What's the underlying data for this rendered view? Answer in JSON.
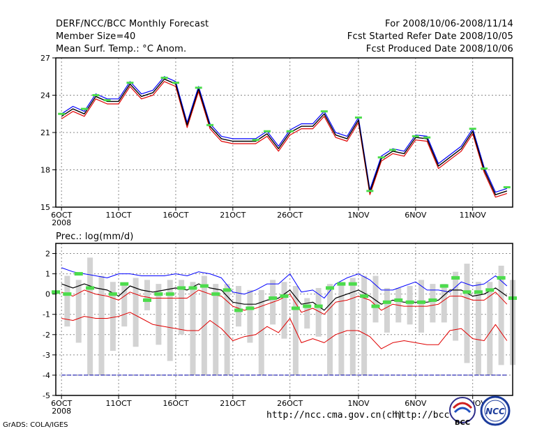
{
  "header": {
    "title": "DERF/NCC/BCC Monthly Forecast",
    "member_size": "Member Size=40",
    "variable": "Mean Surf. Temp.: °C Anom.",
    "period": "For 2008/10/06-2008/11/14",
    "fcst_started": "Fcst Started Refer Date 2008/10/05",
    "fcst_produced": "Fcst Produced Date 2008/10/06"
  },
  "footer": {
    "credit": "GrADS: COLA/IGES",
    "url1": "http://ncc.cma.gov.cn(ch)",
    "url2": "http://bcc."
  },
  "logos": {
    "bcc": "BCC",
    "ncc": "NCC"
  },
  "colors": {
    "axis": "#000000",
    "grid": "#8a8a8a",
    "upper_line": "#0000ff",
    "lower_line": "#e00000",
    "ensemble_mean": "#000000",
    "observation_mark": "#4cdc4c",
    "spread_bar": "#d3d3d3"
  },
  "chart_data": [
    {
      "type": "line",
      "title": "Mean Surf. Temp.: °C Anom.",
      "x_tick_labels": [
        "6OCT",
        "11OCT",
        "16OCT",
        "21OCT",
        "26OCT",
        "1NOV",
        "6NOV",
        "11NOV"
      ],
      "x_tick_days": [
        0,
        5,
        10,
        15,
        20,
        26,
        31,
        36
      ],
      "x_year_label": "2008",
      "x_range_days": [
        -0.5,
        39.5
      ],
      "ylim": [
        15,
        27
      ],
      "y_ticks": [
        15,
        18,
        21,
        24,
        27
      ],
      "series": [
        {
          "name": "mean",
          "values": [
            22.3,
            22.9,
            22.5,
            23.9,
            23.5,
            23.5,
            24.9,
            23.9,
            24.2,
            25.3,
            24.9,
            21.6,
            24.5,
            21.5,
            20.5,
            20.3,
            20.3,
            20.3,
            20.9,
            19.7,
            21.0,
            21.5,
            21.5,
            22.5,
            20.8,
            20.5,
            22.0,
            16.2,
            18.9,
            19.5,
            19.3,
            20.6,
            20.5,
            18.3,
            19.0,
            19.7,
            21.1,
            18.0,
            16.0,
            16.3
          ]
        },
        {
          "name": "upper",
          "values": [
            22.5,
            23.1,
            22.7,
            24.1,
            23.7,
            23.7,
            25.1,
            24.1,
            24.4,
            25.5,
            25.1,
            21.8,
            24.7,
            21.7,
            20.7,
            20.5,
            20.5,
            20.5,
            21.1,
            19.9,
            21.2,
            21.7,
            21.7,
            22.7,
            21.0,
            20.7,
            22.2,
            16.4,
            19.1,
            19.7,
            19.5,
            20.8,
            20.7,
            18.5,
            19.2,
            19.9,
            21.3,
            18.2,
            16.2,
            16.5
          ]
        },
        {
          "name": "lower",
          "values": [
            22.1,
            22.7,
            22.3,
            23.7,
            23.3,
            23.3,
            24.7,
            23.7,
            24.0,
            25.1,
            24.7,
            21.4,
            24.3,
            21.3,
            20.3,
            20.1,
            20.1,
            20.1,
            20.7,
            19.5,
            20.8,
            21.3,
            21.3,
            22.3,
            20.6,
            20.3,
            21.8,
            16.0,
            18.7,
            19.3,
            19.1,
            20.4,
            20.3,
            18.1,
            18.8,
            19.5,
            20.9,
            17.8,
            15.8,
            16.1
          ]
        },
        {
          "name": "observation",
          "marks": [
            [
              0,
              22.5
            ],
            [
              2,
              22.9
            ],
            [
              3,
              24.0
            ],
            [
              4,
              23.6
            ],
            [
              6,
              25.0
            ],
            [
              9,
              25.4
            ],
            [
              10,
              25.0
            ],
            [
              12,
              24.6
            ],
            [
              13,
              21.6
            ],
            [
              17,
              20.4
            ],
            [
              18,
              21.1
            ],
            [
              20,
              21.1
            ],
            [
              23,
              22.7
            ],
            [
              26,
              22.2
            ],
            [
              27,
              16.3
            ],
            [
              28,
              19.0
            ],
            [
              29,
              19.6
            ],
            [
              31,
              20.7
            ],
            [
              32,
              20.6
            ],
            [
              36,
              21.3
            ],
            [
              37,
              18.1
            ],
            [
              39,
              16.6
            ]
          ]
        }
      ]
    },
    {
      "type": "line",
      "title": "Prec.: log(mm/d)",
      "x_tick_labels": [
        "6OCT",
        "11OCT",
        "16OCT",
        "21OCT",
        "26OCT",
        "1NOV",
        "6NOV",
        "11NOV"
      ],
      "x_tick_days": [
        0,
        5,
        10,
        15,
        20,
        26,
        31,
        36
      ],
      "x_year_label": "2008",
      "x_range_days": [
        -0.5,
        39.5
      ],
      "ylim": [
        -5,
        2.5
      ],
      "y_ticks": [
        -5,
        -4,
        -3,
        -2,
        -1,
        0,
        1,
        2
      ],
      "baseline": -4,
      "series": [
        {
          "name": "max",
          "values": [
            1.3,
            1.1,
            1.0,
            0.9,
            0.8,
            1.0,
            1.0,
            0.9,
            0.9,
            0.9,
            1.0,
            0.9,
            1.1,
            1.0,
            0.8,
            0.1,
            0.0,
            0.2,
            0.5,
            0.5,
            1.0,
            0.1,
            0.2,
            -0.2,
            0.5,
            0.8,
            1.0,
            0.7,
            0.2,
            0.2,
            0.4,
            0.6,
            0.2,
            0.2,
            0.1,
            0.6,
            0.4,
            0.5,
            0.9,
            0.4
          ]
        },
        {
          "name": "ensemble_mean",
          "values": [
            0.5,
            0.3,
            0.5,
            0.3,
            0.2,
            -0.1,
            0.4,
            0.2,
            0.1,
            0.2,
            0.3,
            0.2,
            0.5,
            0.3,
            0.2,
            -0.4,
            -0.5,
            -0.5,
            -0.3,
            -0.2,
            0.2,
            -0.5,
            -0.4,
            -0.8,
            -0.2,
            0.0,
            0.2,
            -0.1,
            -0.5,
            -0.3,
            -0.4,
            -0.4,
            -0.4,
            -0.3,
            0.2,
            0.2,
            -0.1,
            0.0,
            0.3,
            -0.1
          ]
        },
        {
          "name": "mid",
          "values": [
            0.1,
            -0.1,
            0.2,
            0.0,
            -0.1,
            -0.3,
            0.1,
            -0.1,
            -0.2,
            -0.2,
            -0.2,
            -0.2,
            0.2,
            0.0,
            -0.1,
            -0.6,
            -0.8,
            -0.7,
            -0.5,
            -0.3,
            0.0,
            -0.9,
            -0.7,
            -1.0,
            -0.4,
            -0.3,
            -0.1,
            -0.3,
            -0.8,
            -0.5,
            -0.6,
            -0.6,
            -0.6,
            -0.5,
            -0.1,
            -0.1,
            -0.3,
            -0.3,
            0.1,
            -0.5
          ]
        },
        {
          "name": "min",
          "values": [
            -1.2,
            -1.3,
            -1.1,
            -1.2,
            -1.2,
            -1.1,
            -0.9,
            -1.2,
            -1.5,
            -1.6,
            -1.7,
            -1.8,
            -1.8,
            -1.3,
            -1.7,
            -2.3,
            -2.1,
            -2.0,
            -1.6,
            -1.9,
            -1.2,
            -2.4,
            -2.2,
            -2.4,
            -2.0,
            -1.8,
            -1.8,
            -2.1,
            -2.7,
            -2.4,
            -2.3,
            -2.4,
            -2.5,
            -2.5,
            -1.8,
            -1.7,
            -2.2,
            -2.3,
            -1.5,
            -2.3
          ]
        },
        {
          "name": "spread_top",
          "values": [
            0.9,
            0.7,
            1.8,
            0.9,
            0.6,
            0.5,
            0.8,
            0.7,
            0.5,
            0.7,
            0.7,
            0.6,
            0.9,
            0.5,
            0.5,
            0.4,
            0.2,
            0.2,
            0.7,
            0.6,
            0.4,
            -0.2,
            0.3,
            0.5,
            0.6,
            0.8,
            0.9,
            0.9,
            0.3,
            0.3,
            0.4,
            0.7,
            0.5,
            0.5,
            1.1,
            1.5,
            0.6,
            0.6,
            1.4,
            0.7
          ]
        },
        {
          "name": "spread_bottom",
          "values": [
            -1.6,
            -2.4,
            -4.0,
            -4.0,
            -2.8,
            -1.6,
            -2.6,
            -0.8,
            -2.5,
            -3.3,
            -2.0,
            -4.0,
            -4.0,
            -4.0,
            -4.0,
            -1.6,
            -2.4,
            -4.0,
            -1.5,
            -2.2,
            -4.0,
            -1.7,
            -2.1,
            -4.0,
            -4.0,
            -4.0,
            -4.0,
            -1.4,
            -1.9,
            -1.4,
            -1.5,
            -1.9,
            -1.4,
            -1.4,
            -2.3,
            -3.4,
            -4.0,
            -4.0,
            -3.5,
            -3.5
          ]
        },
        {
          "name": "observation",
          "marks": [
            [
              0,
              0.1
            ],
            [
              1,
              0.0
            ],
            [
              2,
              1.0
            ],
            [
              3,
              0.3
            ],
            [
              5,
              0.0
            ],
            [
              6,
              0.5
            ],
            [
              8,
              -0.3
            ],
            [
              9,
              0.0
            ],
            [
              10,
              0.0
            ],
            [
              11,
              0.3
            ],
            [
              12,
              0.3
            ],
            [
              13,
              0.4
            ],
            [
              14,
              0.0
            ],
            [
              15,
              0.2
            ],
            [
              16,
              -0.8
            ],
            [
              17,
              -0.7
            ],
            [
              19,
              -0.2
            ],
            [
              20,
              -0.1
            ],
            [
              21,
              -0.7
            ],
            [
              22,
              -0.6
            ],
            [
              23,
              -0.6
            ],
            [
              24,
              0.3
            ],
            [
              25,
              0.5
            ],
            [
              26,
              0.5
            ],
            [
              27,
              -0.1
            ],
            [
              28,
              -0.6
            ],
            [
              29,
              -0.4
            ],
            [
              30,
              -0.3
            ],
            [
              31,
              -0.4
            ],
            [
              32,
              -0.4
            ],
            [
              33,
              -0.3
            ],
            [
              34,
              0.4
            ],
            [
              35,
              0.8
            ],
            [
              36,
              0.1
            ],
            [
              37,
              0.1
            ],
            [
              38,
              0.2
            ],
            [
              39,
              0.8
            ],
            [
              40,
              -0.2
            ]
          ]
        }
      ]
    }
  ]
}
